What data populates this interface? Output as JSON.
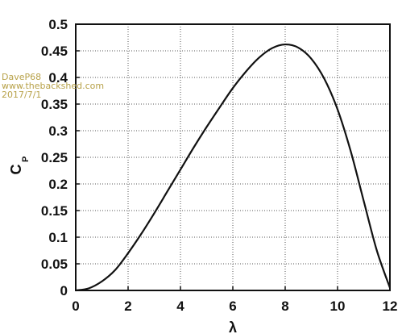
{
  "watermark": [
    "DaveP68",
    "www.thebackshed.com",
    "2017/7/1"
  ],
  "chart_data": {
    "type": "line",
    "title": "",
    "xlabel": "λ",
    "ylabel": "C",
    "ylabel_sub": "P",
    "xlim": [
      0,
      12
    ],
    "ylim": [
      0,
      0.5
    ],
    "xticks": [
      0,
      2,
      4,
      6,
      8,
      10,
      12
    ],
    "yticks": [
      0,
      0.05,
      0.1,
      0.15,
      0.2,
      0.25,
      0.3,
      0.35,
      0.4,
      0.45,
      0.5
    ],
    "xtick_labels": [
      "0",
      "2",
      "4",
      "6",
      "8",
      "10",
      "12"
    ],
    "ytick_labels": [
      "0",
      "0.05",
      "0.1",
      "0.15",
      "0.2",
      "0.25",
      "0.3",
      "0.35",
      "0.4",
      "0.45",
      "0.5"
    ],
    "grid": true,
    "grid_style": "dotted",
    "series": [
      {
        "x": [
          0,
          0.5,
          1,
          1.5,
          2,
          2.5,
          3,
          3.5,
          4,
          4.5,
          5,
          5.5,
          6,
          6.5,
          7,
          7.5,
          8,
          8.5,
          9,
          9.5,
          10,
          10.5,
          11,
          11.5,
          12
        ],
        "values": [
          0,
          0.004,
          0.017,
          0.038,
          0.07,
          0.106,
          0.145,
          0.186,
          0.227,
          0.268,
          0.307,
          0.344,
          0.38,
          0.411,
          0.437,
          0.455,
          0.462,
          0.456,
          0.435,
          0.397,
          0.34,
          0.262,
          0.168,
          0.075,
          0.005
        ]
      }
    ]
  }
}
